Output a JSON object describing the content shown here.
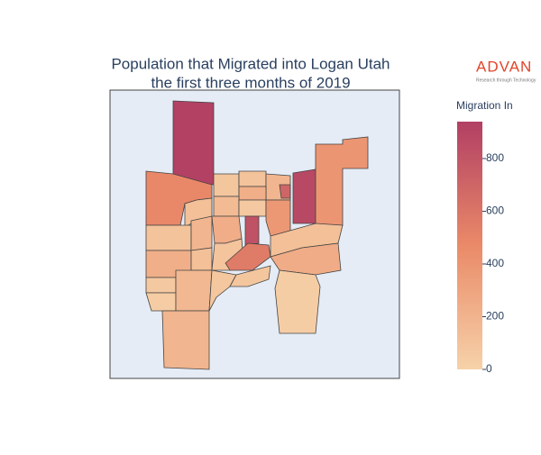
{
  "chart_data": {
    "type": "choropleth",
    "title": [
      "Population that Migrated into Logan Utah",
      "the first three months of 2019"
    ],
    "colorbar_title": "Migration In",
    "values": [
      930,
      480,
      120,
      80,
      100,
      180,
      230,
      150,
      60,
      380,
      880,
      400,
      700,
      100,
      230,
      180,
      120,
      240,
      820,
      90,
      560,
      120,
      250,
      60,
      40,
      170,
      190,
      70,
      80,
      30
    ],
    "colorscale": [
      "#f6d2a9",
      "#ea8a68",
      "#b13f64"
    ],
    "zlim": [
      0,
      940
    ],
    "zticks": [
      0,
      200,
      400,
      600,
      800
    ],
    "logo": {
      "name": "ADVAN",
      "tagline": "Research through Technology"
    }
  }
}
